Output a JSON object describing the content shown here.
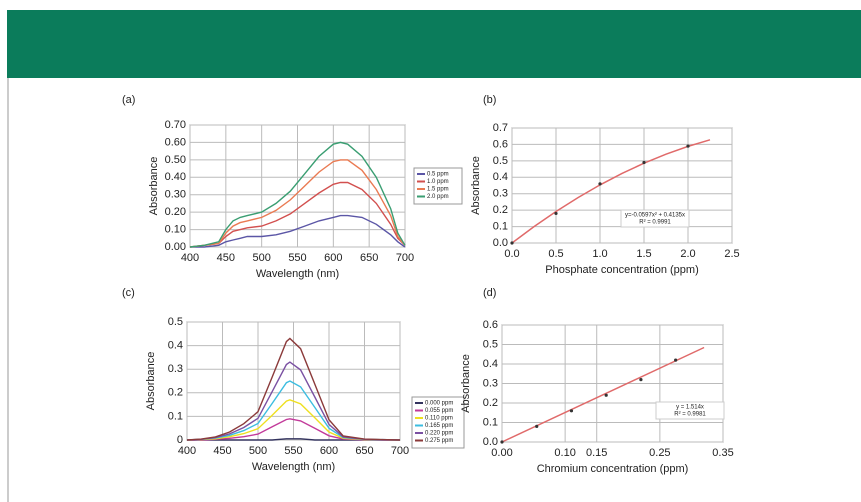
{
  "chart_data": [
    {
      "type": "line",
      "label": "(a)",
      "xlabel": "Wavelength (nm)",
      "ylabel": "Absorbance",
      "xlim": [
        400,
        700
      ],
      "xticks": [
        400,
        450,
        500,
        550,
        600,
        650,
        700
      ],
      "ylim": [
        0,
        0.7
      ],
      "yticks": [
        {
          "value": 0,
          "label": "0.00"
        },
        {
          "value": 0.1,
          "label": "0.10"
        },
        {
          "value": 0.2,
          "label": "0.20"
        },
        {
          "value": 0.3,
          "label": "0.30"
        },
        {
          "value": 0.4,
          "label": "0.40"
        },
        {
          "value": 0.5,
          "label": "0.50"
        },
        {
          "value": 0.6,
          "label": "0.60"
        },
        {
          "value": 0.7,
          "label": "0.70"
        }
      ],
      "grid": true,
      "legend": "right",
      "x": [
        400,
        420,
        440,
        450,
        460,
        470,
        480,
        500,
        520,
        540,
        560,
        580,
        600,
        610,
        620,
        640,
        660,
        680,
        690,
        700
      ],
      "series": [
        {
          "name": "0.5 ppm",
          "color": "#5b56a6",
          "values": [
            0,
            0,
            0.01,
            0.03,
            0.04,
            0.05,
            0.06,
            0.06,
            0.07,
            0.09,
            0.12,
            0.15,
            0.17,
            0.18,
            0.18,
            0.17,
            0.13,
            0.07,
            0.03,
            0
          ]
        },
        {
          "name": "1.0 ppm",
          "color": "#d2504f",
          "values": [
            0,
            0.01,
            0.02,
            0.06,
            0.09,
            0.1,
            0.11,
            0.12,
            0.15,
            0.19,
            0.25,
            0.31,
            0.36,
            0.37,
            0.37,
            0.33,
            0.25,
            0.13,
            0.05,
            0.01
          ]
        },
        {
          "name": "1.5 ppm",
          "color": "#ea7a52",
          "values": [
            0,
            0.01,
            0.02,
            0.08,
            0.12,
            0.14,
            0.15,
            0.17,
            0.21,
            0.27,
            0.35,
            0.43,
            0.49,
            0.5,
            0.5,
            0.44,
            0.33,
            0.18,
            0.06,
            0.01
          ]
        },
        {
          "name": "2.0 ppm",
          "color": "#3a9e72",
          "values": [
            0,
            0.01,
            0.03,
            0.1,
            0.15,
            0.17,
            0.18,
            0.2,
            0.25,
            0.32,
            0.42,
            0.52,
            0.59,
            0.6,
            0.59,
            0.52,
            0.4,
            0.22,
            0.08,
            0.01
          ]
        }
      ]
    },
    {
      "type": "scatter",
      "label": "(b)",
      "xlabel": "Phosphate concentration (ppm)",
      "ylabel": "Absorbance",
      "xlim": [
        0,
        2.5
      ],
      "xticks": [
        {
          "value": 0,
          "label": "0.0"
        },
        0.5,
        {
          "value": 1,
          "label": "1.0"
        },
        1.5,
        {
          "value": 2,
          "label": "2.0"
        },
        2.5
      ],
      "ylim": [
        0,
        0.7
      ],
      "yticks": [
        {
          "value": 0,
          "label": "0.0"
        },
        0.1,
        0.2,
        0.3,
        0.4,
        0.5,
        0.6,
        0.7
      ],
      "grid": true,
      "x": [
        0,
        0.5,
        1.0,
        1.5,
        2.0
      ],
      "series": [
        {
          "color": "#333333",
          "values": [
            0,
            0.18,
            0.36,
            0.49,
            0.59
          ]
        }
      ],
      "fit": {
        "color": "#e06a6a",
        "x": [
          0,
          0.25,
          0.5,
          0.75,
          1,
          1.25,
          1.5,
          1.75,
          2,
          2.25
        ],
        "values": [
          0,
          0.0996,
          0.1918,
          0.2765,
          0.3538,
          0.4236,
          0.486,
          0.5408,
          0.5882,
          0.6282
        ]
      },
      "annotation": [
        "y=-0.0597x² + 0.4135x",
        "R² = 0.9991"
      ]
    },
    {
      "type": "line",
      "label": "(c)",
      "xlabel": "Wavelength (nm)",
      "ylabel": "Absorbance",
      "xlim": [
        400,
        700
      ],
      "xticks": [
        400,
        450,
        500,
        550,
        600,
        650,
        700
      ],
      "ylim": [
        0,
        0.5
      ],
      "yticks": [
        0,
        0.1,
        0.2,
        0.3,
        0.4,
        0.5
      ],
      "grid": true,
      "legend": "right",
      "x": [
        400,
        420,
        440,
        460,
        480,
        500,
        520,
        540,
        545,
        560,
        580,
        600,
        620,
        650,
        700
      ],
      "series": [
        {
          "name": "0.000 ppm",
          "color": "#33335e",
          "values": [
            0,
            0,
            0,
            0,
            0,
            0,
            0,
            0.005,
            0.005,
            0.005,
            0,
            0,
            0,
            0,
            0
          ]
        },
        {
          "name": "0.055 ppm",
          "color": "#c23a9a",
          "values": [
            0,
            0,
            0.003,
            0.007,
            0.014,
            0.025,
            0.056,
            0.087,
            0.09,
            0.081,
            0.05,
            0.018,
            0.004,
            0.001,
            0
          ]
        },
        {
          "name": "0.110 ppm",
          "color": "#eee020",
          "values": [
            0,
            0.002,
            0.005,
            0.014,
            0.027,
            0.048,
            0.105,
            0.165,
            0.17,
            0.153,
            0.094,
            0.034,
            0.007,
            0.002,
            0
          ]
        },
        {
          "name": "0.165 ppm",
          "color": "#3cbde0",
          "values": [
            0,
            0.003,
            0.008,
            0.02,
            0.04,
            0.07,
            0.155,
            0.243,
            0.25,
            0.225,
            0.138,
            0.05,
            0.01,
            0.003,
            0
          ]
        },
        {
          "name": "0.220 ppm",
          "color": "#7a50a2",
          "values": [
            0,
            0.003,
            0.01,
            0.026,
            0.053,
            0.092,
            0.205,
            0.32,
            0.33,
            0.297,
            0.182,
            0.066,
            0.013,
            0.003,
            0
          ]
        },
        {
          "name": "0.275 ppm",
          "color": "#8b3a3a",
          "values": [
            0,
            0.004,
            0.013,
            0.034,
            0.069,
            0.12,
            0.267,
            0.417,
            0.43,
            0.387,
            0.237,
            0.086,
            0.017,
            0.004,
            0
          ]
        }
      ]
    },
    {
      "type": "scatter",
      "label": "(d)",
      "xlabel": "Chromium concentration (ppm)",
      "ylabel": "Absorbance",
      "xlim": [
        0,
        0.35
      ],
      "xticks": [
        {
          "value": 0,
          "label": "0.00"
        },
        {
          "value": 0.1,
          "label": "0.10"
        },
        0.15,
        0.25,
        0.35
      ],
      "ylim": [
        0,
        0.6
      ],
      "yticks": [
        {
          "value": 0,
          "label": "0.0"
        },
        0.1,
        0.2,
        0.3,
        0.4,
        0.5,
        0.6
      ],
      "grid": true,
      "x": [
        0,
        0.055,
        0.11,
        0.165,
        0.22,
        0.275
      ],
      "series": [
        {
          "color": "#333333",
          "values": [
            0,
            0.08,
            0.16,
            0.24,
            0.32,
            0.42
          ]
        }
      ],
      "fit": {
        "color": "#e06a6a",
        "x": [
          0,
          0.32
        ],
        "values": [
          0,
          0.4845
        ]
      },
      "annotation": [
        "y = 1.514x",
        "R² = 0.9981"
      ]
    }
  ]
}
